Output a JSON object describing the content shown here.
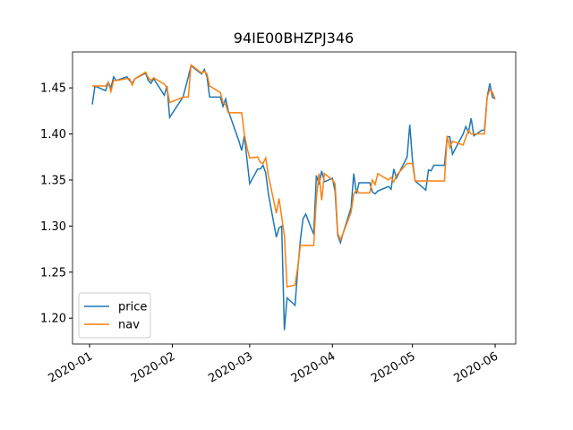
{
  "chart_data": {
    "type": "line",
    "title": "94IE00BHZPJ346",
    "x": [
      1,
      2,
      6,
      7,
      8,
      9,
      10,
      14,
      15,
      16,
      17,
      21,
      22,
      23,
      24,
      28,
      29,
      30,
      35,
      37,
      38,
      42,
      43,
      44,
      45,
      49,
      50,
      51,
      52,
      56,
      57,
      58,
      59,
      60,
      63,
      64,
      65,
      66,
      67,
      70,
      71,
      72,
      73,
      74,
      77,
      78,
      79,
      80,
      81,
      84,
      85,
      86,
      87,
      88,
      91,
      92,
      93,
      94,
      95,
      98,
      99,
      100,
      101,
      105,
      106,
      107,
      108,
      112,
      113,
      114,
      115,
      119,
      120,
      121,
      122,
      126,
      127,
      128,
      129,
      133,
      134,
      135,
      136,
      140,
      141,
      142,
      143,
      144,
      147,
      148,
      149,
      150,
      151,
      152
    ],
    "series": [
      {
        "name": "price",
        "color": "#1f77b4",
        "values": [
          1.432,
          1.452,
          1.447,
          1.456,
          1.45,
          1.462,
          1.458,
          1.462,
          1.458,
          1.455,
          1.46,
          1.466,
          1.458,
          1.455,
          1.46,
          1.442,
          1.452,
          1.418,
          1.44,
          1.462,
          1.474,
          1.465,
          1.47,
          1.462,
          1.44,
          1.44,
          1.43,
          1.438,
          1.425,
          1.392,
          1.382,
          1.398,
          1.372,
          1.346,
          1.362,
          1.362,
          1.366,
          1.358,
          1.335,
          1.288,
          1.298,
          1.3,
          1.187,
          1.222,
          1.214,
          1.252,
          1.285,
          1.308,
          1.313,
          1.291,
          1.355,
          1.345,
          1.36,
          1.348,
          1.352,
          1.338,
          1.29,
          1.282,
          1.292,
          1.32,
          1.357,
          1.335,
          1.347,
          1.347,
          1.337,
          1.335,
          1.338,
          1.343,
          1.34,
          1.362,
          1.352,
          1.375,
          1.41,
          1.372,
          1.349,
          1.339,
          1.361,
          1.36,
          1.366,
          1.366,
          1.397,
          1.397,
          1.378,
          1.4,
          1.408,
          1.402,
          1.417,
          1.398,
          1.404,
          1.404,
          1.44,
          1.455,
          1.44,
          1.438
        ]
      },
      {
        "name": "nav",
        "color": "#ff7f0e",
        "values": [
          1.452,
          1.452,
          1.452,
          1.456,
          1.446,
          1.458,
          1.458,
          1.46,
          1.46,
          1.453,
          1.46,
          1.467,
          1.461,
          1.458,
          1.461,
          1.454,
          1.45,
          1.434,
          1.44,
          1.44,
          1.475,
          1.466,
          1.468,
          1.465,
          1.452,
          1.445,
          1.434,
          1.432,
          1.423,
          1.423,
          1.423,
          1.4,
          1.385,
          1.374,
          1.375,
          1.369,
          1.368,
          1.374,
          1.355,
          1.314,
          1.33,
          1.31,
          1.29,
          1.234,
          1.236,
          1.255,
          1.279,
          1.279,
          1.279,
          1.279,
          1.33,
          1.357,
          1.328,
          1.357,
          1.35,
          1.346,
          1.292,
          1.285,
          1.292,
          1.315,
          1.335,
          1.339,
          1.336,
          1.336,
          1.35,
          1.345,
          1.357,
          1.35,
          1.353,
          1.348,
          1.355,
          1.368,
          1.368,
          1.368,
          1.349,
          1.349,
          1.349,
          1.349,
          1.349,
          1.349,
          1.398,
          1.385,
          1.392,
          1.388,
          1.396,
          1.404,
          1.4,
          1.4,
          1.4,
          1.4,
          1.44,
          1.448,
          1.445,
          1.438
        ]
      }
    ],
    "xlim": [
      -6.4,
      159.7
    ],
    "xticks": [
      {
        "value": 0,
        "label": "2020-01"
      },
      {
        "value": 31,
        "label": "2020-02"
      },
      {
        "value": 60,
        "label": "2020-03"
      },
      {
        "value": 91,
        "label": "2020-04"
      },
      {
        "value": 121,
        "label": "2020-05"
      },
      {
        "value": 152,
        "label": "2020-06"
      }
    ],
    "ylim": [
      1.172,
      1.489
    ],
    "yticks": [
      {
        "value": 1.2,
        "label": "1.20"
      },
      1.25,
      {
        "value": 1.3,
        "label": "1.30"
      },
      1.35,
      {
        "value": 1.4,
        "label": "1.40"
      },
      1.45
    ],
    "grid": false,
    "legend": "lower left"
  }
}
